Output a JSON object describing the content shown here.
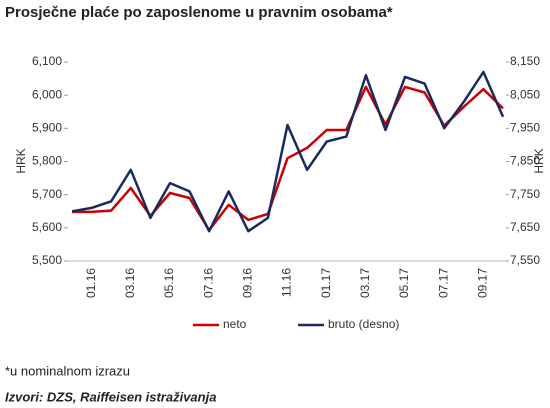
{
  "chart_data": {
    "type": "line",
    "title": "Prosječne plaće po zaposlenome u pravnim osobama*",
    "y_label": "HRK",
    "y2_label": "HRK",
    "categories": [
      null,
      "01.16",
      null,
      "03.16",
      null,
      "05.16",
      null,
      "07.16",
      null,
      "09.16",
      null,
      "11.16",
      null,
      "01.17",
      null,
      "03.17",
      null,
      "05.17",
      null,
      "07.17",
      null,
      "09.17",
      null
    ],
    "series": [
      {
        "name": "neto",
        "color": "#cc0000",
        "values": [
          5648,
          5648,
          5652,
          5720,
          5636,
          5705,
          5690,
          5593,
          5669,
          5624,
          5642,
          5810,
          5841,
          5895,
          5895,
          6025,
          5912,
          6025,
          6008,
          5908,
          5965,
          6018,
          5960
        ]
      },
      {
        "name": "bruto (desno)",
        "color": "#1a2a5e",
        "axis": "y2",
        "values": [
          7700,
          7710,
          7730,
          7825,
          7680,
          7785,
          7760,
          7640,
          7760,
          7640,
          7680,
          7960,
          7825,
          7910,
          7925,
          8110,
          7945,
          8105,
          8085,
          7950,
          8030,
          8120,
          7985
        ]
      }
    ],
    "ylim": [
      5500,
      6100
    ],
    "yticks": [
      {
        "value": 5500,
        "label": "5,500"
      },
      {
        "value": 5600,
        "label": "5,600"
      },
      {
        "value": 5700,
        "label": "5,700"
      },
      {
        "value": 5800,
        "label": "5,800"
      },
      {
        "value": 5900,
        "label": "5,900"
      },
      {
        "value": 6000,
        "label": "6,000"
      },
      {
        "value": 6100,
        "label": "6,100"
      }
    ],
    "y2lim": [
      7550,
      8150
    ],
    "y2ticks": [
      {
        "value": 7550,
        "label": "7,550"
      },
      {
        "value": 7650,
        "label": "7,650"
      },
      {
        "value": 7750,
        "label": "7,750"
      },
      {
        "value": 7850,
        "label": "7,850"
      },
      {
        "value": 7950,
        "label": "7,950"
      },
      {
        "value": 8050,
        "label": "8,050"
      },
      {
        "value": 8150,
        "label": "8,150"
      }
    ],
    "grid": false,
    "legend": "bottom",
    "footnote": "*u nominalnom izrazu",
    "source": "Izvori: DZS, Raiffeisen istraživanja"
  }
}
